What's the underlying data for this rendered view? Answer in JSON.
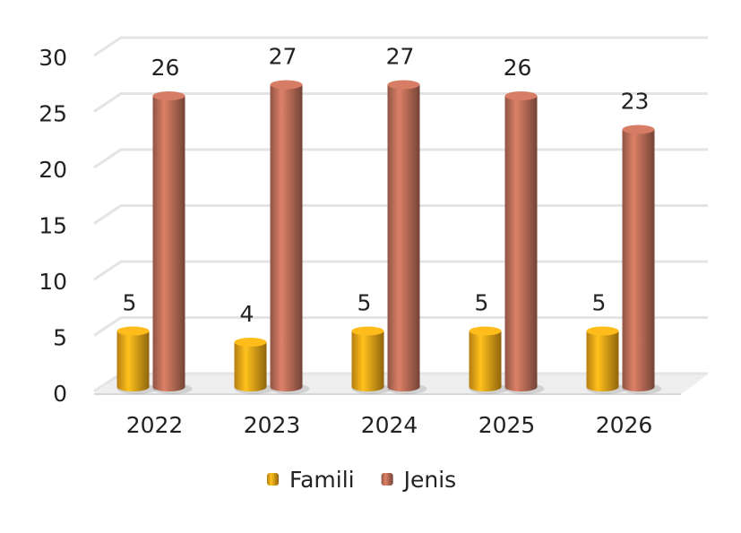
{
  "chart_data": {
    "type": "bar",
    "categories": [
      "2022",
      "2023",
      "2024",
      "2025",
      "2026"
    ],
    "series": [
      {
        "name": "Famili",
        "color": "#f0a818",
        "values": [
          5,
          4,
          5,
          5,
          5
        ]
      },
      {
        "name": "Jenis",
        "color": "#c0705a",
        "values": [
          26,
          27,
          27,
          26,
          23
        ]
      }
    ],
    "ylim": [
      0,
      30
    ],
    "yticks": [
      0,
      5,
      10,
      15,
      20,
      25,
      30
    ],
    "grid": true,
    "legend": "bottom"
  }
}
